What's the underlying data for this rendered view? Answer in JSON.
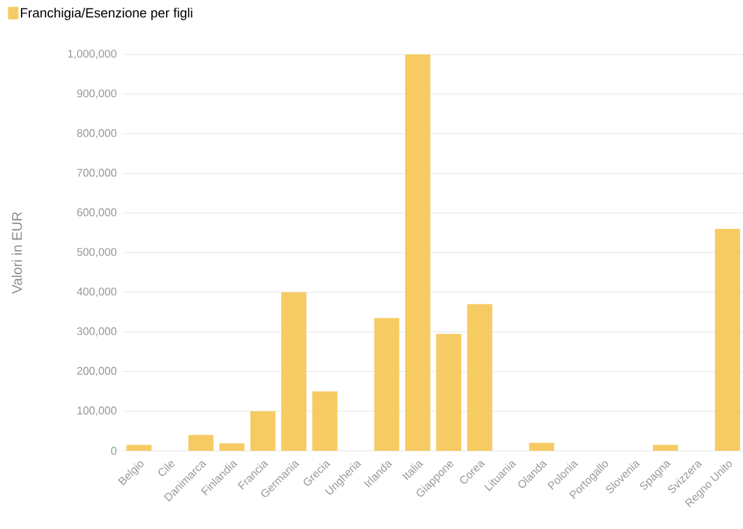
{
  "chart_data": {
    "type": "bar",
    "ylabel": "Valori in EUR",
    "categories": [
      "Belgio",
      "Cile",
      "Danimarca",
      "Finlandia",
      "Francia",
      "Germania",
      "Grecia",
      "Ungheria",
      "Irlanda",
      "Italia",
      "Giappone",
      "Corea",
      "Lituania",
      "Olanda",
      "Polonia",
      "Portogallo",
      "Slovenia",
      "Spagna",
      "Svizzera",
      "Regno Unito"
    ],
    "series": [
      {
        "name": "Franchigia/Esenzione per figli",
        "color": "#f6cb63",
        "values": [
          15000,
          0,
          40000,
          19000,
          100000,
          400000,
          150000,
          0,
          335000,
          1000000,
          295000,
          370000,
          0,
          20000,
          0,
          0,
          0,
          15000,
          0,
          560000
        ]
      }
    ],
    "ylim": [
      0,
      1000000
    ],
    "yticks": [
      {
        "value": 0,
        "label": "0"
      },
      {
        "value": 100000,
        "label": "100,000"
      },
      {
        "value": 200000,
        "label": "200,000"
      },
      {
        "value": 300000,
        "label": "300,000"
      },
      {
        "value": 400000,
        "label": "400,000"
      },
      {
        "value": 500000,
        "label": "500,000"
      },
      {
        "value": 600000,
        "label": "600,000"
      },
      {
        "value": 700000,
        "label": "700,000"
      },
      {
        "value": 800000,
        "label": "800,000"
      },
      {
        "value": 900000,
        "label": "900,000"
      },
      {
        "value": 1000000,
        "label": "1,000,000"
      }
    ],
    "grid": "y",
    "legend": "top left"
  }
}
